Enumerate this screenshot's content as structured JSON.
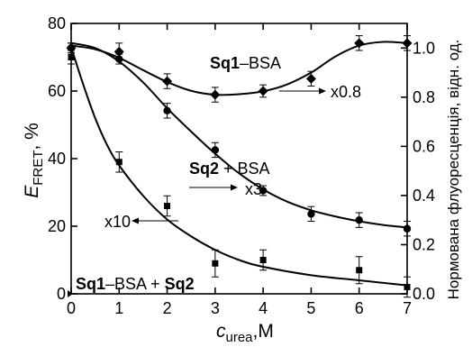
{
  "chart_data": {
    "type": "scatter",
    "xlabel_main": "c",
    "xlabel_sub": "urea",
    "xlabel_unit": ",M",
    "ylabel_main": "E",
    "ylabel_sub": "FRET",
    "ylabel_unit": ", %",
    "y2label": "Нормована флуоресценція, відн. од.",
    "xlim": [
      0,
      7
    ],
    "ylim": [
      0,
      80
    ],
    "y2lim": [
      0,
      1.1
    ],
    "xticks": [
      0,
      1,
      2,
      3,
      4,
      5,
      6,
      7
    ],
    "yticks": [
      0,
      20,
      40,
      60,
      80
    ],
    "y2ticks": [
      "0.0",
      "0.2",
      "0.4",
      "0.6",
      "0.8",
      "1.0"
    ],
    "series": [
      {
        "name": "Sq1–BSA",
        "axis": "right",
        "marker": "diamond",
        "x": [
          0,
          1,
          2,
          3,
          4,
          5,
          6,
          7
        ],
        "y": [
          1.0,
          0.985,
          0.865,
          0.81,
          0.825,
          0.875,
          1.02,
          1.02
        ],
        "err": [
          0.02,
          0.035,
          0.03,
          0.03,
          0.025,
          0.03,
          0.03,
          0.03
        ]
      },
      {
        "name": "Sq2 + BSA",
        "axis": "right",
        "marker": "circle",
        "x": [
          0,
          1,
          2,
          3,
          4,
          5,
          6,
          7
        ],
        "y": [
          1.0,
          0.955,
          0.745,
          0.585,
          0.42,
          0.325,
          0.3,
          0.265
        ],
        "err": [
          0.02,
          0.02,
          0.03,
          0.03,
          0.02,
          0.03,
          0.03,
          0.03
        ]
      },
      {
        "name": "Sq1–BSA + Sq2",
        "axis": "left",
        "marker": "square",
        "x": [
          0,
          1,
          2,
          3,
          4,
          5,
          6,
          7
        ],
        "y": [
          70,
          39,
          26,
          9,
          10,
          null,
          7,
          2
        ],
        "err": [
          2,
          3,
          3,
          4,
          3,
          null,
          4,
          3
        ]
      }
    ],
    "fits": [
      {
        "axis": "right",
        "x": [
          0,
          0.5,
          1,
          1.5,
          2,
          2.5,
          3,
          3.5,
          4,
          4.5,
          5,
          5.5,
          6,
          6.5,
          7
        ],
        "y": [
          1.01,
          0.995,
          0.96,
          0.91,
          0.862,
          0.826,
          0.81,
          0.812,
          0.824,
          0.852,
          0.9,
          0.965,
          1.01,
          1.025,
          1.02
        ]
      },
      {
        "axis": "right",
        "x": [
          0,
          0.5,
          1,
          1.5,
          2,
          2.5,
          3,
          3.5,
          4,
          4.5,
          5,
          5.5,
          6,
          6.5,
          7
        ],
        "y": [
          1.02,
          1.0,
          0.945,
          0.86,
          0.755,
          0.66,
          0.57,
          0.49,
          0.425,
          0.375,
          0.34,
          0.315,
          0.295,
          0.28,
          0.27
        ]
      },
      {
        "axis": "left",
        "x": [
          0,
          0.25,
          0.5,
          0.75,
          1,
          1.5,
          2,
          2.5,
          3,
          3.5,
          4,
          5,
          6,
          7
        ],
        "y": [
          73,
          62,
          52,
          44,
          38,
          29,
          22,
          17,
          13,
          10,
          8,
          5.5,
          4,
          2.5
        ]
      }
    ],
    "annotations": {
      "sq1_bsa": {
        "bold": "Sq1",
        "rest": "–BSA"
      },
      "factor_08": "x0.8",
      "sq2_bsa": {
        "bold": "Sq2",
        "rest": " + BSA"
      },
      "factor_3": "x3",
      "factor_10": "x10",
      "bottom": {
        "b1": "Sq1",
        "r1": "–BSA + ",
        "b2": "Sq2"
      }
    }
  }
}
